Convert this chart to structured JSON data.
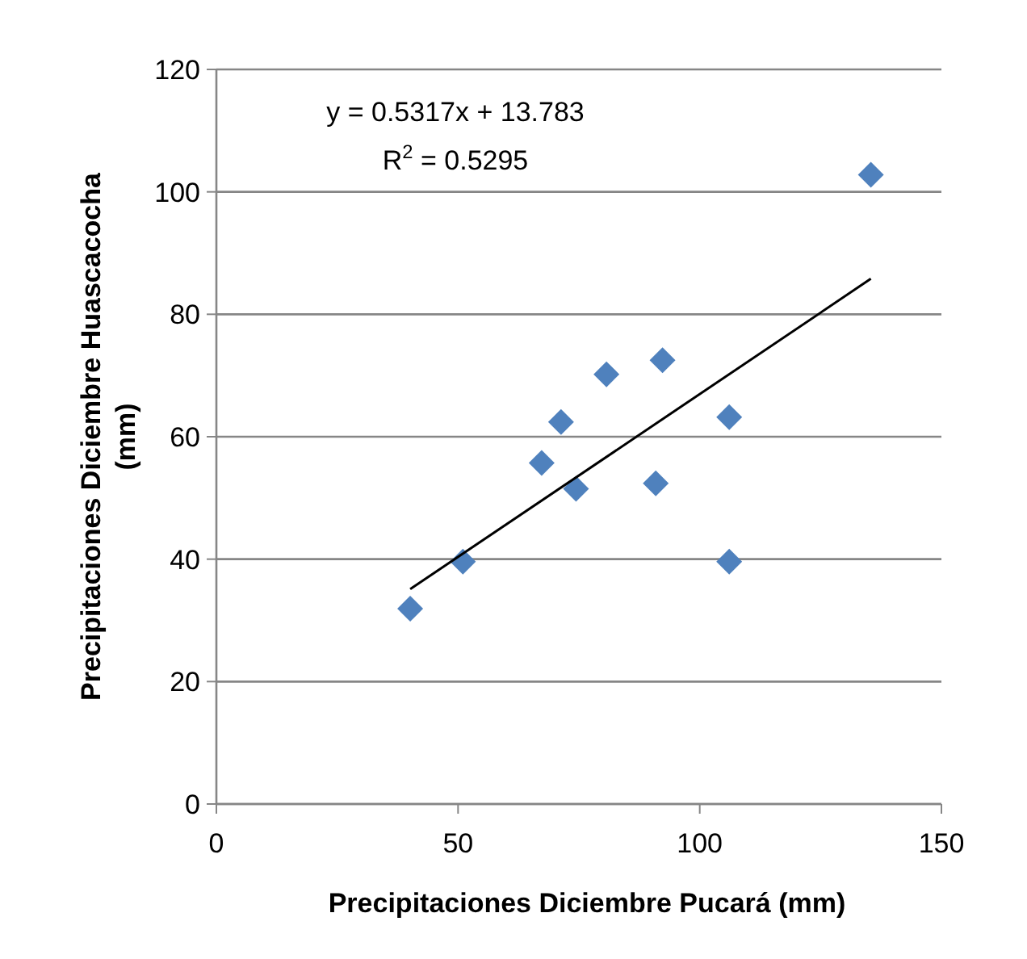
{
  "chart_data": {
    "type": "scatter",
    "xlabel": "Precipitaciones Diciembre Pucará (mm)",
    "ylabel": "Precipitaciones Diciembre Huascacocha (mm)",
    "x": [
      40.1,
      51.0,
      67.3,
      74.4,
      90.9,
      106.1,
      71.3,
      80.7,
      92.3,
      106.1,
      135.4
    ],
    "series": [
      {
        "color": "#4f81bd",
        "marker": "diamond",
        "values": [
          31.9,
          39.6,
          55.7,
          51.5,
          52.4,
          39.6,
          62.4,
          70.2,
          72.5,
          63.2,
          102.8
        ]
      },
      {
        "type": "line",
        "color": "#000000",
        "x": [
          40.1,
          135.4
        ],
        "values": [
          35.1,
          85.8
        ]
      }
    ],
    "annotations": [
      "y = 0.5317x + 13.783",
      "R$^{2}$ = 0.5295"
    ],
    "xlim": [
      0,
      150
    ],
    "xticks": [
      0,
      50,
      100,
      150
    ],
    "ylim": [
      0,
      120
    ],
    "yticks": [
      0,
      20,
      40,
      60,
      80,
      100,
      120
    ],
    "grid": "y"
  }
}
